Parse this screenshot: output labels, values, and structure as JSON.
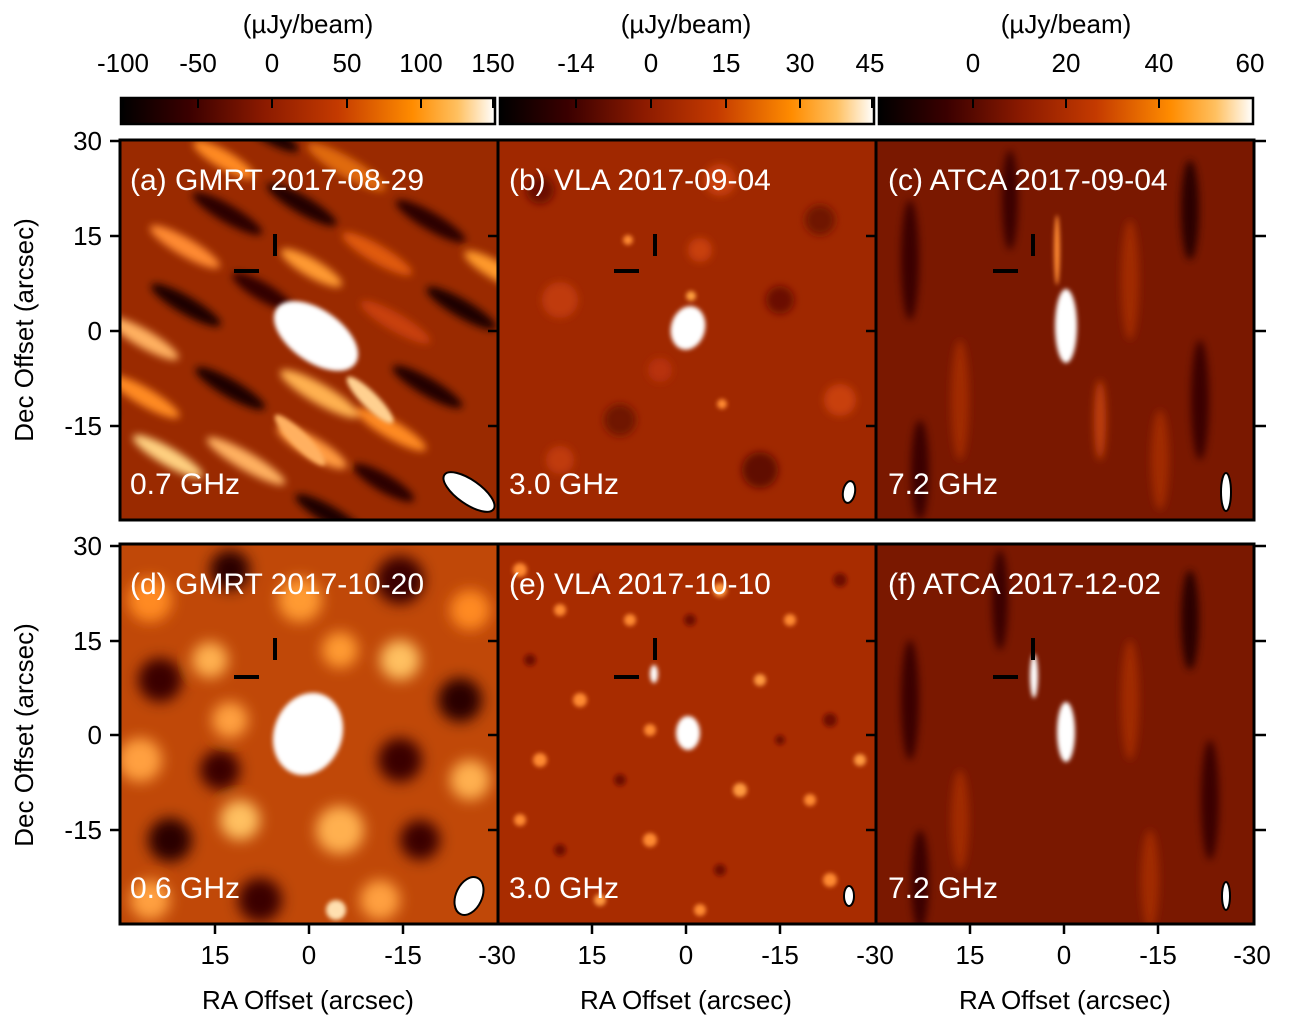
{
  "colormap": [
    "#000000",
    "#3a0000",
    "#8b1a00",
    "#c43a00",
    "#ff8c00",
    "#ffc060",
    "#ffffff"
  ],
  "colorbars": [
    {
      "unit": "(µJy/beam)",
      "ticks": [
        "-100",
        "-50",
        "0",
        "50",
        "100",
        "150"
      ]
    },
    {
      "unit": "(µJy/beam)",
      "ticks": [
        "-14",
        "0",
        "15",
        "30",
        "45"
      ]
    },
    {
      "unit": "(µJy/beam)",
      "ticks": [
        "0",
        "20",
        "40",
        "60"
      ]
    }
  ],
  "y_axis": {
    "label": "Dec Offset (arcsec)",
    "ticks": [
      "30",
      "15",
      "0",
      "-15"
    ]
  },
  "x_axis": {
    "label": "RA Offset (arcsec)",
    "ticks": [
      "15",
      "0",
      "-15",
      "-30"
    ]
  },
  "panels": [
    {
      "label": "(a) GMRT 2017-08-29",
      "freq": "0.7 GHz"
    },
    {
      "label": "(b) VLA 2017-09-04",
      "freq": "3.0 GHz"
    },
    {
      "label": "(c) ATCA 2017-09-04",
      "freq": "7.2 GHz"
    },
    {
      "label": "(d) GMRT 2017-10-20",
      "freq": "0.6 GHz"
    },
    {
      "label": "(e) VLA 2017-10-10",
      "freq": "3.0 GHz"
    },
    {
      "label": "(f) ATCA 2017-12-02",
      "freq": "7.2 GHz"
    }
  ]
}
